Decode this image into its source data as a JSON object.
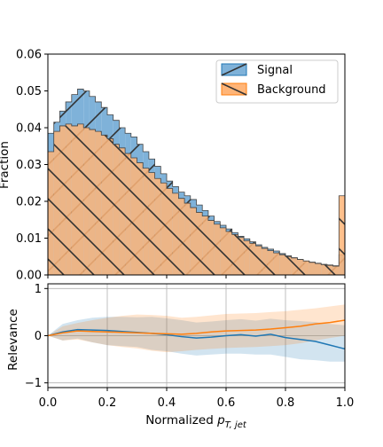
{
  "chart_data": [
    {
      "type": "histogram",
      "ylabel": "Fraction",
      "xlim": [
        0.0,
        1.0
      ],
      "ylim": [
        0.0,
        0.06
      ],
      "xticks": [
        "0.0",
        "0.2",
        "0.4",
        "0.6",
        "0.8",
        "1.0"
      ],
      "yticks": [
        "0.00",
        "0.01",
        "0.02",
        "0.03",
        "0.04",
        "0.05",
        "0.06"
      ],
      "legend_position": "top-right",
      "bin_edges": [
        0.0,
        0.02,
        0.04,
        0.06,
        0.08,
        0.1,
        0.12,
        0.14,
        0.16,
        0.18,
        0.2,
        0.22,
        0.24,
        0.26,
        0.28,
        0.3,
        0.32,
        0.34,
        0.36,
        0.38,
        0.4,
        0.42,
        0.44,
        0.46,
        0.48,
        0.5,
        0.52,
        0.54,
        0.56,
        0.58,
        0.6,
        0.62,
        0.64,
        0.66,
        0.68,
        0.7,
        0.72,
        0.74,
        0.76,
        0.78,
        0.8,
        0.82,
        0.84,
        0.86,
        0.88,
        0.9,
        0.92,
        0.94,
        0.96,
        0.98,
        1.0
      ],
      "series": [
        {
          "name": "Signal",
          "color": "#1f77b4",
          "fill": "#7fb2d9",
          "hatch": "/",
          "values": [
            0.0385,
            0.0415,
            0.0445,
            0.047,
            0.049,
            0.0505,
            0.05,
            0.0485,
            0.047,
            0.0455,
            0.0435,
            0.042,
            0.04,
            0.0385,
            0.0375,
            0.0355,
            0.0335,
            0.0315,
            0.0295,
            0.0275,
            0.0255,
            0.024,
            0.0225,
            0.0215,
            0.0205,
            0.019,
            0.0175,
            0.016,
            0.0145,
            0.0135,
            0.0125,
            0.0115,
            0.0105,
            0.0098,
            0.009,
            0.0082,
            0.0075,
            0.007,
            0.0065,
            0.0058,
            0.0052,
            0.0047,
            0.0042,
            0.0038,
            0.0035,
            0.0032,
            0.0029,
            0.0027,
            0.0025,
            0.0055
          ]
        },
        {
          "name": "Background",
          "color": "#ff7f0e",
          "fill": "#ffb578",
          "hatch": "\\",
          "values": [
            0.0335,
            0.039,
            0.0405,
            0.041,
            0.0405,
            0.041,
            0.04,
            0.0395,
            0.039,
            0.038,
            0.037,
            0.0355,
            0.0345,
            0.033,
            0.0318,
            0.0305,
            0.029,
            0.0278,
            0.0262,
            0.025,
            0.0235,
            0.0222,
            0.0208,
            0.0195,
            0.0183,
            0.017,
            0.016,
            0.0148,
            0.0138,
            0.0128,
            0.0118,
            0.011,
            0.0102,
            0.0093,
            0.0086,
            0.0079,
            0.0072,
            0.0066,
            0.006,
            0.0055,
            0.005,
            0.0046,
            0.0042,
            0.0038,
            0.0034,
            0.0031,
            0.0028,
            0.0026,
            0.0024,
            0.0215
          ]
        }
      ]
    },
    {
      "type": "line",
      "ylabel": "Relevance",
      "xlabel_prefix": "Normalized ",
      "xlabel_symbol": "p",
      "xlabel_sub": "T, jet",
      "xlim": [
        0.0,
        1.0
      ],
      "ylim": [
        -1.1,
        1.1
      ],
      "xticks": [
        "0.0",
        "0.2",
        "0.4",
        "0.6",
        "0.8",
        "1.0"
      ],
      "yticks": [
        "1",
        "0",
        "−1"
      ],
      "grid": true,
      "x": [
        0.0,
        0.05,
        0.1,
        0.15,
        0.2,
        0.25,
        0.3,
        0.35,
        0.4,
        0.45,
        0.5,
        0.55,
        0.6,
        0.65,
        0.7,
        0.75,
        0.8,
        0.85,
        0.9,
        0.95,
        1.0
      ],
      "series": [
        {
          "name": "Signal",
          "color": "#1f77b4",
          "values": [
            0.0,
            0.08,
            0.13,
            0.12,
            0.11,
            0.09,
            0.07,
            0.05,
            0.02,
            -0.02,
            -0.05,
            -0.03,
            0.0,
            0.02,
            -0.01,
            0.03,
            -0.04,
            -0.08,
            -0.12,
            -0.2,
            -0.28
          ],
          "upper": [
            0.0,
            0.25,
            0.33,
            0.38,
            0.4,
            0.4,
            0.39,
            0.4,
            0.37,
            0.33,
            0.28,
            0.3,
            0.33,
            0.35,
            0.32,
            0.36,
            0.33,
            0.31,
            0.29,
            0.25,
            0.22
          ],
          "lower": [
            0.0,
            -0.1,
            -0.06,
            -0.14,
            -0.2,
            -0.22,
            -0.24,
            -0.3,
            -0.33,
            -0.38,
            -0.42,
            -0.4,
            -0.38,
            -0.38,
            -0.4,
            -0.4,
            -0.45,
            -0.5,
            -0.52,
            -0.55,
            -0.55
          ]
        },
        {
          "name": "Background",
          "color": "#ff7f0e",
          "values": [
            0.0,
            0.06,
            0.1,
            0.09,
            0.08,
            0.07,
            0.06,
            0.05,
            0.04,
            0.03,
            0.05,
            0.08,
            0.1,
            0.11,
            0.12,
            0.14,
            0.17,
            0.2,
            0.25,
            0.28,
            0.33
          ],
          "upper": [
            0.0,
            0.2,
            0.27,
            0.33,
            0.38,
            0.42,
            0.45,
            0.44,
            0.42,
            0.38,
            0.4,
            0.43,
            0.46,
            0.47,
            0.48,
            0.5,
            0.52,
            0.55,
            0.58,
            0.62,
            0.66
          ],
          "lower": [
            0.0,
            -0.1,
            -0.08,
            -0.14,
            -0.2,
            -0.24,
            -0.27,
            -0.32,
            -0.35,
            -0.33,
            -0.3,
            -0.28,
            -0.26,
            -0.25,
            -0.24,
            -0.22,
            -0.2,
            -0.16,
            -0.1,
            -0.05,
            0.0
          ]
        }
      ]
    }
  ]
}
